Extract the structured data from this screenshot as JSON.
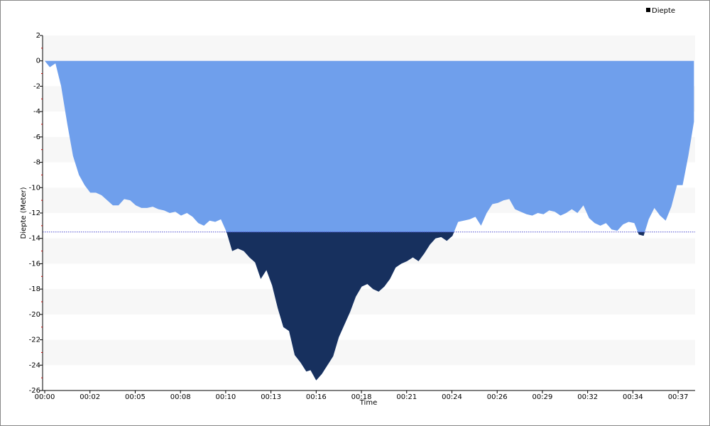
{
  "chart_data": {
    "type": "area",
    "x_label": "Time",
    "y_label": "Diepte (Meter)",
    "x": [
      0,
      18,
      38,
      58,
      80,
      100,
      121,
      141,
      161,
      181,
      201,
      221,
      241,
      261,
      281,
      302,
      322,
      342,
      362,
      382,
      402,
      422,
      442,
      462,
      482,
      503,
      523,
      543,
      563,
      583,
      603,
      623,
      643,
      663,
      683,
      704,
      724,
      744,
      764,
      784,
      804,
      824,
      844,
      864,
      884,
      905,
      925,
      940,
      960,
      980,
      1000,
      1020,
      1040,
      1060,
      1080,
      1100,
      1121,
      1141,
      1161,
      1181,
      1201,
      1221,
      1241,
      1261,
      1281,
      1302,
      1322,
      1342,
      1362,
      1382,
      1402,
      1422,
      1442,
      1462,
      1482,
      1503,
      1523,
      1543,
      1563,
      1583,
      1603,
      1623,
      1643,
      1663,
      1683,
      1704,
      1724,
      1744,
      1764,
      1784,
      1804,
      1824,
      1844,
      1864,
      1884,
      1905,
      1925,
      1945,
      1965,
      1985,
      2005,
      2025,
      2045,
      2065,
      2085,
      2101,
      2118,
      2136,
      2156,
      2176,
      2196,
      2216,
      2236,
      2256,
      2276,
      2296
    ],
    "series": [
      {
        "name": "Diepte",
        "color": "#6f9fec",
        "below_color": "#17305e",
        "legend_color": "#000000",
        "values": [
          0,
          -0.5,
          -0.2,
          -2,
          -5,
          -7.5,
          -9,
          -9.8,
          -10.4,
          -10.4,
          -10.6,
          -11,
          -11.4,
          -11.4,
          -10.9,
          -11,
          -11.4,
          -11.6,
          -11.6,
          -11.5,
          -11.7,
          -11.8,
          -12,
          -11.9,
          -12.2,
          -12,
          -12.3,
          -12.8,
          -13,
          -12.6,
          -12.7,
          -12.5,
          -13.5,
          -15,
          -14.8,
          -15,
          -15.5,
          -15.9,
          -17.2,
          -16.5,
          -17.7,
          -19.5,
          -21,
          -21.3,
          -23.2,
          -23.8,
          -24.5,
          -24.4,
          -25.2,
          -24.7,
          -24,
          -23.3,
          -21.8,
          -20.8,
          -19.8,
          -18.6,
          -17.8,
          -17.6,
          -18,
          -18.2,
          -17.8,
          -17.2,
          -16.3,
          -16,
          -15.8,
          -15.5,
          -15.8,
          -15.2,
          -14.5,
          -14,
          -13.9,
          -14.2,
          -13.8,
          -12.7,
          -12.6,
          -12.5,
          -12.3,
          -13,
          -12,
          -11.3,
          -11.2,
          -11,
          -10.9,
          -11.7,
          -11.9,
          -12.1,
          -12.2,
          -12,
          -12.1,
          -11.8,
          -11.9,
          -12.2,
          -12,
          -11.7,
          -12,
          -11.4,
          -12.4,
          -12.8,
          -13,
          -12.8,
          -13.3,
          -13.4,
          -12.9,
          -12.7,
          -12.8,
          -13.7,
          -13.8,
          -12.5,
          -11.6,
          -12.2,
          -12.6,
          -11.5,
          -9.8,
          -9.8,
          -7.5,
          -4.8
        ]
      }
    ],
    "reference_line": -13.5,
    "xlim": [
      0,
      2300
    ],
    "xticks": [
      {
        "value": 0,
        "label": "00:00"
      },
      {
        "value": 160,
        "label": "00:02"
      },
      {
        "value": 320,
        "label": "00:05"
      },
      {
        "value": 480,
        "label": "00:08"
      },
      {
        "value": 640,
        "label": "00:10"
      },
      {
        "value": 800,
        "label": "00:13"
      },
      {
        "value": 960,
        "label": "00:16"
      },
      {
        "value": 1120,
        "label": "00:18"
      },
      {
        "value": 1280,
        "label": "00:21"
      },
      {
        "value": 1440,
        "label": "00:24"
      },
      {
        "value": 1600,
        "label": "00:26"
      },
      {
        "value": 1760,
        "label": "00:29"
      },
      {
        "value": 1920,
        "label": "00:32"
      },
      {
        "value": 2080,
        "label": "00:34"
      },
      {
        "value": 2240,
        "label": "00:37"
      }
    ],
    "ylim": [
      -26,
      2
    ],
    "yticks": [
      2,
      0,
      -2,
      -4,
      -6,
      -8,
      -10,
      -12,
      -14,
      -16,
      -18,
      -20,
      -22,
      -24,
      -26
    ],
    "band_color": "#f7f7f7",
    "legend": "top-right"
  }
}
